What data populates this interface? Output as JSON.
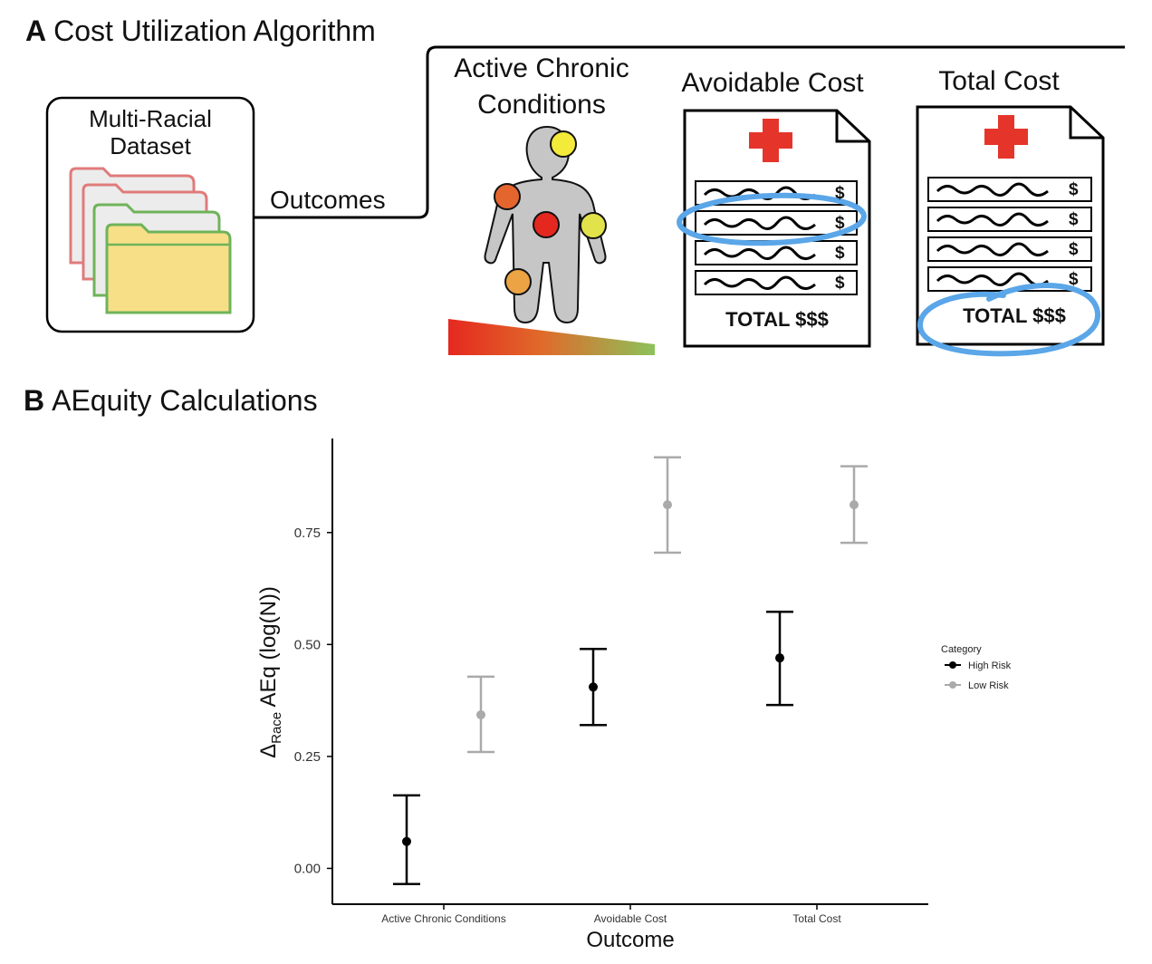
{
  "panel_a": {
    "letter": "A",
    "title": "Cost Utilization Algorithm",
    "dataset_label_line1": "Multi-Racial",
    "dataset_label_line2": "Dataset",
    "arrow_label": "Outcomes",
    "outcome1_line1": "Active Chronic",
    "outcome1_line2": "Conditions",
    "outcome2": "Avoidable Cost",
    "outcome3": "Total Cost",
    "bill_dollar": "$",
    "bill_total": "TOTAL $$$",
    "colors": {
      "folder_red": "#e07b7b",
      "folder_green": "#6fb35a",
      "folder_yellow": "#f7df88",
      "cross": "#e5352b",
      "highlight": "#5aa6e8",
      "body_gray": "#c6c6c6",
      "dot_yellow": "#f4ea3a",
      "dot_orange": "#e5652f",
      "dot_red": "#e5281f",
      "dot_lime": "#e2e34a",
      "dot_amber": "#eba343"
    }
  },
  "panel_b": {
    "letter": "B",
    "title": "AEquity Calculations"
  },
  "chart_data": {
    "type": "scatter",
    "title": "",
    "xlabel": "Outcome",
    "ylabel_prefix": "Δ",
    "ylabel_sub": "Race",
    "ylabel_main": " AEq (log(N))",
    "categories": [
      "Active Chronic Conditions",
      "Avoidable Cost",
      "Total Cost"
    ],
    "yticks": [
      "0.00",
      "0.25",
      "0.50",
      "0.75"
    ],
    "ylim": [
      -0.08,
      0.96
    ],
    "grid": false,
    "legend_title": "Category",
    "legend_position": "right",
    "series": [
      {
        "name": "High Risk",
        "color": "#000000",
        "values": [
          0.06,
          0.405,
          0.47
        ],
        "lower": [
          -0.035,
          0.32,
          0.365
        ],
        "upper": [
          0.163,
          0.49,
          0.573
        ]
      },
      {
        "name": "Low Risk",
        "color": "#aaaaaa",
        "values": [
          0.343,
          0.812,
          0.812
        ],
        "lower": [
          0.26,
          0.705,
          0.727
        ],
        "upper": [
          0.428,
          0.918,
          0.898
        ]
      }
    ]
  }
}
